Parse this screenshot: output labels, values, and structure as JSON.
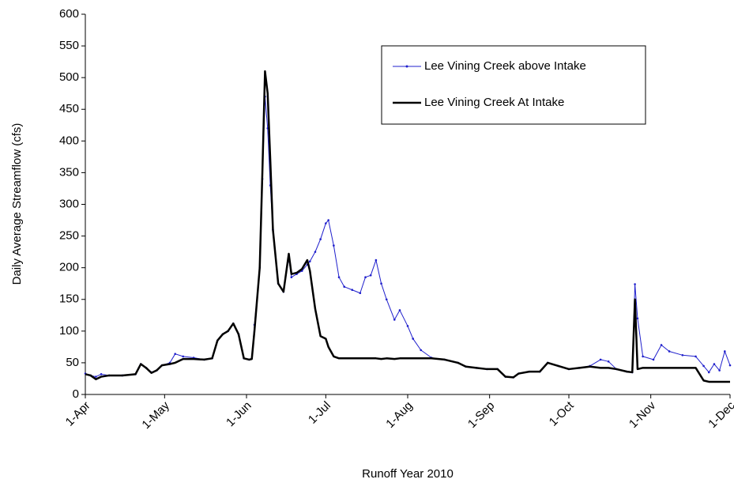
{
  "chart_data": {
    "type": "line",
    "x_label": "Runoff Year 2010",
    "y_label": "Daily Average Streamflow (cfs)",
    "x": [
      "1-Apr",
      "3-Apr",
      "5-Apr",
      "7-Apr",
      "10-Apr",
      "15-Apr",
      "20-Apr",
      "22-Apr",
      "24-Apr",
      "26-Apr",
      "28-Apr",
      "30-Apr",
      "3-May",
      "5-May",
      "8-May",
      "12-May",
      "16-May",
      "19-May",
      "21-May",
      "23-May",
      "25-May",
      "27-May",
      "29-May",
      "31-May",
      "2-Jun",
      "3-Jun",
      "4-Jun",
      "6-Jun",
      "7-Jun",
      "8-Jun",
      "9-Jun",
      "10-Jun",
      "11-Jun",
      "13-Jun",
      "15-Jun",
      "17-Jun",
      "18-Jun",
      "20-Jun",
      "22-Jun",
      "24-Jun",
      "25-Jun",
      "27-Jun",
      "29-Jun",
      "1-Jul",
      "2-Jul",
      "4-Jul",
      "6-Jul",
      "8-Jul",
      "11-Jul",
      "14-Jul",
      "16-Jul",
      "18-Jul",
      "20-Jul",
      "22-Jul",
      "24-Jul",
      "27-Jul",
      "29-Jul",
      "1-Aug",
      "3-Aug",
      "6-Aug",
      "10-Aug",
      "15-Aug",
      "20-Aug",
      "23-Aug",
      "27-Aug",
      "31-Aug",
      "4-Sep",
      "7-Sep",
      "10-Sep",
      "12-Sep",
      "16-Sep",
      "20-Sep",
      "23-Sep",
      "27-Sep",
      "1-Oct",
      "5-Oct",
      "9-Oct",
      "13-Oct",
      "16-Oct",
      "19-Oct",
      "23-Oct",
      "25-Oct",
      "26-Oct",
      "27-Oct",
      "29-Oct",
      "2-Nov",
      "5-Nov",
      "8-Nov",
      "13-Nov",
      "18-Nov",
      "21-Nov",
      "23-Nov",
      "25-Nov",
      "27-Nov",
      "29-Nov",
      "1-Dec"
    ],
    "series": [
      {
        "name": "Lee Vining Creek above Intake",
        "color": "#1f1fcc",
        "markers": true,
        "width": 1,
        "values": [
          33,
          30,
          28,
          32,
          30,
          30,
          32,
          48,
          42,
          35,
          38,
          46,
          50,
          64,
          60,
          58,
          55,
          57,
          85,
          95,
          100,
          112,
          95,
          57,
          55,
          57,
          110,
          200,
          340,
          470,
          420,
          330,
          260,
          175,
          162,
          215,
          185,
          190,
          195,
          205,
          210,
          225,
          245,
          270,
          275,
          235,
          185,
          170,
          165,
          160,
          185,
          188,
          212,
          175,
          150,
          118,
          133,
          108,
          88,
          70,
          58,
          55,
          50,
          44,
          42,
          40,
          40,
          28,
          27,
          33,
          36,
          36,
          50,
          45,
          40,
          42,
          45,
          55,
          52,
          40,
          36,
          35,
          174,
          120,
          60,
          55,
          78,
          68,
          62,
          60,
          45,
          35,
          48,
          38,
          68,
          46
        ]
      },
      {
        "name": "Lee Vining Creek At Intake",
        "color": "#000000",
        "markers": false,
        "width": 2.5,
        "values": [
          32,
          30,
          24,
          28,
          30,
          30,
          32,
          48,
          42,
          34,
          38,
          46,
          48,
          50,
          56,
          56,
          55,
          57,
          85,
          95,
          100,
          112,
          95,
          57,
          55,
          56,
          100,
          200,
          350,
          510,
          475,
          370,
          260,
          175,
          162,
          222,
          190,
          192,
          198,
          212,
          195,
          135,
          92,
          88,
          75,
          60,
          57,
          57,
          57,
          57,
          57,
          57,
          57,
          56,
          57,
          56,
          57,
          57,
          57,
          57,
          57,
          55,
          50,
          44,
          42,
          40,
          40,
          28,
          27,
          33,
          36,
          36,
          50,
          45,
          40,
          42,
          44,
          42,
          42,
          40,
          36,
          35,
          150,
          40,
          42,
          42,
          42,
          42,
          42,
          42,
          22,
          20,
          20,
          20,
          20,
          20
        ]
      }
    ],
    "xlim": [
      "1-Apr",
      "1-Dec"
    ],
    "xticks": [
      "1-Apr",
      "1-May",
      "1-Jun",
      "1-Jul",
      "1-Aug",
      "1-Sep",
      "1-Oct",
      "1-Nov",
      "1-Dec"
    ],
    "ylim": [
      0,
      600
    ],
    "yticks": [
      0,
      50,
      100,
      150,
      200,
      250,
      300,
      350,
      400,
      450,
      500,
      550,
      600
    ],
    "legend": "top-right",
    "grid": false
  }
}
